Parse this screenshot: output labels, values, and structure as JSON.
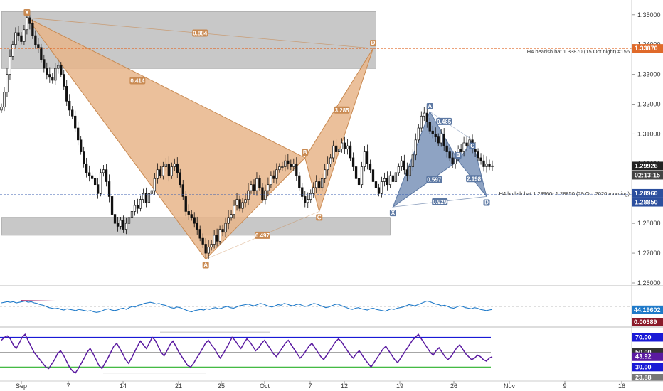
{
  "colors": {
    "up_candle": "#111111",
    "down_candle": "#111111",
    "bearish_pattern": "#e8b589",
    "bearish_stroke": "#c98a52",
    "bullish_pattern": "#7a93b8",
    "bullish_stroke": "#5c78a3",
    "zone": "#9a9a9a",
    "rsi_line": "#1f7ac9",
    "stoch_line": "#5a1aa0",
    "level_high": "#1a1ad6",
    "level_low": "#2ab02a",
    "level_mid": "#888888"
  },
  "chart_data": [
    {
      "type": "candlestick",
      "title": "",
      "x_axis": {
        "ticks": [
          "Sep",
          "7",
          "14",
          "21",
          "25",
          "Oct",
          "7",
          "12",
          "19",
          "26",
          "Nov",
          "9",
          "16"
        ]
      },
      "y_axis": {
        "ticks": [
          "1.35000",
          "1.34000",
          "1.33000",
          "1.32000",
          "1.31000",
          "1.30000",
          "1.29000",
          "1.28000",
          "1.27000",
          "1.26000"
        ],
        "range": [
          1.26,
          1.354
        ]
      },
      "price_labels": {
        "last": "1.29926",
        "countdown": "02:13:15",
        "bat_bear_level": "1.33870",
        "bat_bull_hi": "1.28960",
        "bat_bull_lo": "1.28850"
      },
      "close_series": [
        1.319,
        1.324,
        1.33,
        1.336,
        1.34,
        1.344,
        1.343,
        1.341,
        1.345,
        1.349,
        1.347,
        1.343,
        1.34,
        1.339,
        1.335,
        1.332,
        1.33,
        1.329,
        1.328,
        1.332,
        1.333,
        1.33,
        1.326,
        1.321,
        1.318,
        1.316,
        1.312,
        1.308,
        1.304,
        1.3,
        1.297,
        1.296,
        1.295,
        1.293,
        1.29,
        1.297,
        1.298,
        1.294,
        1.289,
        1.283,
        1.28,
        1.279,
        1.281,
        1.278,
        1.28,
        1.282,
        1.284,
        1.286,
        1.285,
        1.288,
        1.29,
        1.287,
        1.29,
        1.291,
        1.295,
        1.298,
        1.296,
        1.299,
        1.3,
        1.296,
        1.299,
        1.3,
        1.297,
        1.293,
        1.289,
        1.284,
        1.283,
        1.282,
        1.28,
        1.278,
        1.275,
        1.273,
        1.27,
        1.272,
        1.273,
        1.276,
        1.274,
        1.278,
        1.277,
        1.28,
        1.282,
        1.283,
        1.286,
        1.288,
        1.285,
        1.287,
        1.288,
        1.291,
        1.293,
        1.291,
        1.295,
        1.292,
        1.288,
        1.291,
        1.293,
        1.296,
        1.295,
        1.298,
        1.299,
        1.299,
        1.301,
        1.3,
        1.299,
        1.3,
        1.296,
        1.292,
        1.289,
        1.287,
        1.288,
        1.29,
        1.292,
        1.294,
        1.292,
        1.295,
        1.298,
        1.3,
        1.302,
        1.306,
        1.304,
        1.305,
        1.307,
        1.305,
        1.306,
        1.302,
        1.299,
        1.295,
        1.293,
        1.299,
        1.304,
        1.3,
        1.298,
        1.294,
        1.292,
        1.29,
        1.294,
        1.295,
        1.293,
        1.296,
        1.294,
        1.297,
        1.299,
        1.301,
        1.298,
        1.296,
        1.299,
        1.303,
        1.308,
        1.312,
        1.316,
        1.317,
        1.314,
        1.311,
        1.31,
        1.309,
        1.307,
        1.31,
        1.306,
        1.304,
        1.302,
        1.3,
        1.302,
        1.305,
        1.304,
        1.307,
        1.306,
        1.308,
        1.305,
        1.304,
        1.302,
        1.301,
        1.299,
        1.3,
        1.299,
        1.2993
      ],
      "rsi": {
        "value_label": "44.19602",
        "secondary_label": "0.00389",
        "series": [
          56,
          57,
          58,
          57,
          58,
          56,
          57,
          58,
          59,
          57,
          58,
          56,
          55,
          53,
          52,
          50,
          48,
          47,
          46,
          47,
          45,
          44,
          46,
          45,
          44,
          43,
          45,
          44,
          43,
          42,
          43,
          41,
          40,
          41,
          43,
          45,
          46,
          44,
          43,
          44,
          46,
          47,
          45,
          48,
          50,
          49,
          52,
          53,
          55,
          56,
          57,
          56,
          54,
          55,
          53,
          52,
          50,
          48,
          47,
          49,
          48,
          46,
          44,
          42,
          41,
          43,
          44,
          45,
          44,
          46,
          45,
          47,
          48,
          46,
          47,
          49,
          50,
          48,
          47,
          49,
          51,
          52,
          53,
          54,
          52,
          51,
          53,
          55,
          54,
          52,
          50,
          49,
          51,
          53,
          52,
          55,
          54,
          52,
          51,
          53,
          54,
          52,
          50,
          51,
          53,
          55,
          54,
          52,
          50,
          48,
          49,
          51,
          53,
          54,
          52,
          50,
          48,
          46,
          45,
          47,
          48,
          46,
          45,
          44,
          46,
          47,
          45,
          44,
          43,
          42,
          44,
          46,
          45,
          47,
          48,
          49,
          51,
          53,
          52,
          51,
          53,
          55,
          57,
          59,
          58,
          56,
          54,
          53,
          51,
          52,
          50,
          48,
          47,
          49,
          51,
          50,
          48,
          47,
          46,
          48,
          47,
          45,
          44,
          43,
          44,
          45
        ]
      },
      "stochastic": {
        "levels": [
          "70.00",
          "50.00",
          "30.00"
        ],
        "value_label": "43.92",
        "bottom_label": "23.88",
        "series": [
          66,
          70,
          72,
          68,
          60,
          55,
          62,
          70,
          74,
          66,
          58,
          50,
          45,
          40,
          35,
          30,
          28,
          34,
          40,
          48,
          52,
          46,
          38,
          30,
          25,
          22,
          28,
          35,
          42,
          50,
          55,
          48,
          40,
          32,
          28,
          35,
          42,
          50,
          58,
          62,
          55,
          48,
          40,
          35,
          42,
          50,
          58,
          65,
          60,
          55,
          62,
          70,
          66,
          58,
          50,
          45,
          52,
          60,
          65,
          58,
          50,
          44,
          38,
          32,
          30,
          35,
          42,
          48,
          55,
          62,
          66,
          60,
          55,
          48,
          42,
          48,
          55,
          62,
          70,
          66,
          60,
          55,
          62,
          68,
          64,
          58,
          52,
          56,
          62,
          66,
          60,
          54,
          48,
          44,
          50,
          56,
          62,
          66,
          60,
          54,
          48,
          42,
          46,
          52,
          58,
          62,
          56,
          50,
          44,
          40,
          46,
          52,
          58,
          64,
          68,
          64,
          58,
          52,
          46,
          42,
          48,
          52,
          46,
          40,
          35,
          30,
          36,
          42,
          48,
          54,
          58,
          52,
          46,
          40,
          36,
          42,
          48,
          54,
          60,
          66,
          70,
          74,
          68,
          62,
          56,
          50,
          46,
          52,
          56,
          50,
          44,
          40,
          44,
          50,
          56,
          60,
          54,
          48,
          44,
          40,
          42,
          46,
          44,
          40,
          38,
          42,
          44
        ]
      },
      "patterns": [
        {
          "name": "bearish bat",
          "points": [
            {
              "label": "X",
              "index": 9,
              "price": 1.349
            },
            {
              "label": "A",
              "index": 72,
              "price": 1.268
            },
            {
              "label": "B",
              "index": 107,
              "price": 1.302
            },
            {
              "label": "C",
              "index": 112,
              "price": 1.284
            },
            {
              "label": "D",
              "index": 131,
              "price": 1.3387
            }
          ],
          "ratios": [
            "0.884",
            "0.414",
            "0.497",
            "3.285"
          ],
          "note": "H4 bearish bat 1.33870 (15 Oct night) #156"
        },
        {
          "name": "bullish bat",
          "points": [
            {
              "label": "X",
              "index": 138,
              "price": 1.2855
            },
            {
              "label": "A",
              "index": 151,
              "price": 1.3175
            },
            {
              "label": "B",
              "index": 161,
              "price": 1.301
            },
            {
              "label": "C",
              "index": 166,
              "price": 1.308
            },
            {
              "label": "D",
              "index": 171,
              "price": 1.289
            }
          ],
          "ratios": [
            "0.465",
            "0.597",
            "2.198",
            "0.929"
          ],
          "note": "H4 bullish bat 1.28960- 1.28850 (29 Oct 2020 morning)"
        }
      ],
      "zones": [
        {
          "name": "supply",
          "from": 1.332,
          "to": 1.351,
          "start_index": 0,
          "end_index": 131
        },
        {
          "name": "demand",
          "from": 1.276,
          "to": 1.282,
          "start_index": 0,
          "end_index": 136
        }
      ]
    }
  ]
}
